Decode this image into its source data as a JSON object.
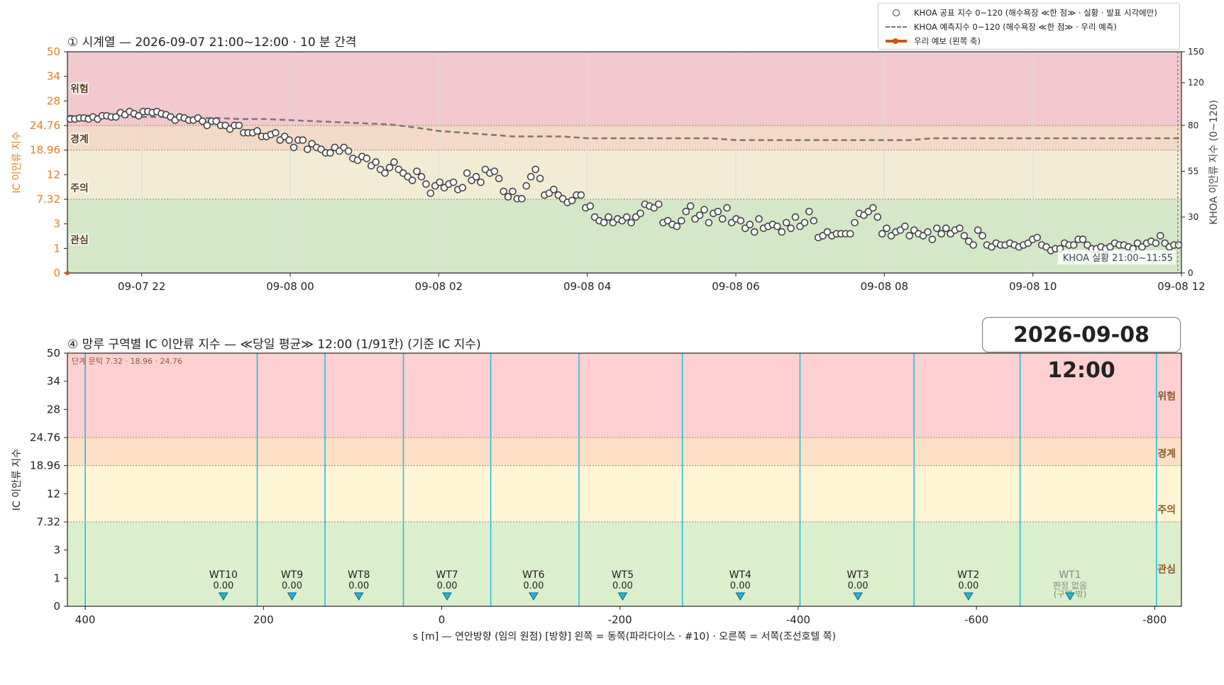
{
  "legend": {
    "items": [
      {
        "label": "KHOA 공표 지수 0~120 (해수욕장 ≪한 점≫ · 실황 · 발표 시각에만)",
        "kind": "circle"
      },
      {
        "label": "KHOA 예측지수 0~120 (해수욕장 ≪한 점≫ · 우리 예측)",
        "kind": "dash"
      },
      {
        "label": "우리 예보 (왼쪽 축)",
        "kind": "line"
      }
    ]
  },
  "time_badge": "2026-09-08  12:00",
  "chart_data": [
    {
      "type": "scatter",
      "title": "① 시계열 — 2026-09-07 21:00~12:00 · 10 분 간격",
      "ylabel": "IC 이안류 지수",
      "y2label": "KHOA 이안류 지수 (0~120)",
      "xlabel": "",
      "x_ticks": [
        "09-07 22",
        "09-08 00",
        "09-08 02",
        "09-08 04",
        "09-08 06",
        "09-08 08",
        "09-08 10",
        "09-08 12"
      ],
      "xlim_hours": [
        -3,
        12
      ],
      "y_ticks": [
        "0",
        "1",
        "3",
        "7.32",
        "12",
        "18.96",
        "24.76",
        "28",
        "34",
        "50"
      ],
      "y2_ticks": [
        "0",
        "30",
        "55",
        "80",
        "120",
        "150"
      ],
      "bands": [
        "관심",
        "주의",
        "경계",
        "위험"
      ],
      "band_colors": [
        "#d4e8c8",
        "#f2ecd4",
        "#f2dac6",
        "#f2c9cf"
      ],
      "annotation": "KHOA 실황 21:00~11:55",
      "series": [
        {
          "name": "KHOA 공표 지수 0~120 (해수욕장 ≪한 점≫ · 실황 · 발표 시각에만)",
          "values": [
            86,
            86,
            87,
            87,
            86,
            88,
            86,
            89,
            89,
            88,
            88,
            92,
            90,
            93,
            91,
            89,
            93,
            93,
            92,
            93,
            91,
            90,
            88,
            85,
            88,
            87,
            85,
            85,
            87,
            84,
            80,
            84,
            84,
            80,
            80,
            78,
            80,
            80,
            76,
            76,
            76,
            77,
            74,
            74,
            75,
            76,
            72,
            74,
            72,
            68,
            72,
            72,
            67,
            70,
            68,
            67,
            65,
            65,
            68,
            66,
            68,
            66,
            62,
            61,
            63,
            62,
            58,
            60,
            56,
            54,
            57,
            60,
            56,
            54,
            52,
            50,
            55,
            52,
            48,
            43,
            47,
            49,
            46,
            48,
            49,
            45,
            46,
            54,
            50,
            52,
            49,
            56,
            54,
            55,
            51,
            44,
            41,
            44,
            40,
            40,
            47,
            52,
            56,
            51,
            42,
            43,
            45,
            42,
            40,
            38,
            39,
            42,
            42,
            35,
            36,
            30,
            28,
            27,
            30,
            27,
            29,
            28,
            30,
            27,
            30,
            32,
            37,
            36,
            35,
            37,
            27,
            28,
            26,
            25,
            28,
            33,
            36,
            29,
            31,
            34,
            27,
            32,
            33,
            29,
            35,
            27,
            29,
            28,
            24,
            26,
            22,
            29,
            24,
            25,
            26,
            25,
            22,
            27,
            24,
            30,
            25,
            27,
            33,
            28,
            19,
            20,
            22,
            20,
            21,
            21,
            21,
            21,
            27,
            32,
            31,
            33,
            35,
            30,
            21,
            24,
            20,
            22,
            23,
            25,
            20,
            23,
            21,
            20,
            22,
            18,
            24,
            21,
            24,
            21,
            23,
            24,
            20,
            17,
            15,
            23,
            20,
            15,
            14,
            16,
            15,
            15,
            16,
            15,
            14,
            15,
            16,
            18,
            19,
            15,
            14,
            12,
            13,
            13,
            16,
            15,
            15,
            18,
            18,
            15,
            13,
            13,
            14,
            13,
            14,
            16,
            15,
            15,
            14,
            13,
            16,
            14,
            16,
            17,
            16,
            20,
            16,
            14,
            15,
            15
          ]
        },
        {
          "name": "KHOA 예측지수 0~120 (해수욕장 ≪한 점≫ · 우리 예측)",
          "values": [
            89,
            89,
            88,
            88,
            88,
            87,
            87,
            86,
            86,
            85,
            84,
            83,
            82,
            81,
            79,
            77,
            76,
            75,
            74,
            74,
            74,
            73,
            73,
            73,
            73,
            73,
            73,
            72,
            72,
            72,
            72,
            72,
            72,
            72,
            72,
            73,
            73,
            73,
            73,
            73,
            73,
            73,
            73,
            73,
            73,
            73
          ]
        },
        {
          "name": "우리 예보 (왼쪽 축)",
          "values": [
            0
          ]
        }
      ]
    },
    {
      "type": "bar",
      "title": "④ 망루 구역별 IC 이안류 지수 — ≪당일 평균≫ 12:00  (1/91칸)   (기준 IC 지수)",
      "xlabel": "s [m] — 연안방향 (임의 원점)     [방향] 왼쪽 = 동쪽(파라다이스 · #10) · 오른쪽 = 서쪽(조선호텔 쪽)",
      "ylabel": "IC 이안류 지수",
      "threshold_note": "단계 문턱 7.32 · 18.96 · 24.76",
      "x_ticks": [
        "400",
        "200",
        "0",
        "-200",
        "-400",
        "-600",
        "-800"
      ],
      "y_ticks": [
        "0",
        "1",
        "3",
        "7.32",
        "12",
        "18.96",
        "24.76",
        "28",
        "34",
        "50"
      ],
      "bands": [
        "관심",
        "주의",
        "경계",
        "위험"
      ],
      "band_colors": [
        "#dcefcc",
        "#fff5d4",
        "#fde0c6",
        "#ffd0d2"
      ],
      "categories": [
        "WT10",
        "WT9",
        "WT8",
        "WT7",
        "WT6",
        "WT5",
        "WT4",
        "WT3",
        "WT2",
        "WT1"
      ],
      "values": [
        0.0,
        0.0,
        0.0,
        0.0,
        0.0,
        0.0,
        0.0,
        0.0,
        0.0,
        null
      ],
      "value_labels": [
        "0.00",
        "0.00",
        "0.00",
        "0.00",
        "0.00",
        "0.00",
        "0.00",
        "0.00",
        "0.00",
        "판정 없음\n(구역 밖)"
      ],
      "s_positions": [
        245,
        168,
        93,
        -6,
        -103,
        -203,
        -335,
        -467,
        -591,
        -705
      ],
      "zone_boundaries": [
        400,
        207,
        131,
        43,
        -55,
        -154,
        -270,
        -402,
        -530,
        -649,
        -802
      ]
    }
  ]
}
